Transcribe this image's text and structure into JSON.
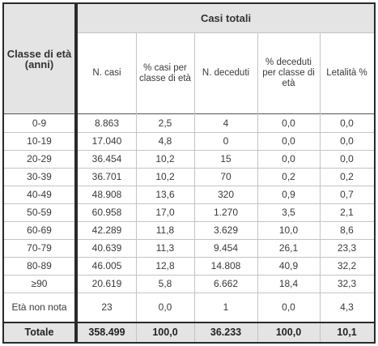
{
  "table": {
    "row_header_title": "Classe di età (anni)",
    "group_title": "Casi totali",
    "columns": [
      "N. casi",
      "% casi per classe di età",
      "N. deceduti",
      "% deceduti per classe di età",
      "Letalità %"
    ],
    "rows": [
      [
        "0-9",
        "8.863",
        "2,5",
        "4",
        "0,0",
        "0,0"
      ],
      [
        "10-19",
        "17.040",
        "4,8",
        "0",
        "0,0",
        "0,0"
      ],
      [
        "20-29",
        "36.454",
        "10,2",
        "15",
        "0,0",
        "0,0"
      ],
      [
        "30-39",
        "36.701",
        "10,2",
        "70",
        "0,2",
        "0,2"
      ],
      [
        "40-49",
        "48.908",
        "13,6",
        "320",
        "0,9",
        "0,7"
      ],
      [
        "50-59",
        "60.958",
        "17,0",
        "1.270",
        "3,5",
        "2,1"
      ],
      [
        "60-69",
        "42.289",
        "11,8",
        "3.629",
        "10,0",
        "8,6"
      ],
      [
        "70-79",
        "40.639",
        "11,3",
        "9.454",
        "26,1",
        "23,3"
      ],
      [
        "80-89",
        "46.005",
        "12,8",
        "14.808",
        "40,9",
        "32,2"
      ],
      [
        "≥90",
        "20.619",
        "5,8",
        "6.662",
        "18,4",
        "32,3"
      ],
      [
        "Età non nota",
        "23",
        "0,0",
        "1",
        "0,0",
        "4,3"
      ]
    ],
    "total": [
      "Totale",
      "358.499",
      "100,0",
      "36.233",
      "100,0",
      "10,1"
    ]
  }
}
